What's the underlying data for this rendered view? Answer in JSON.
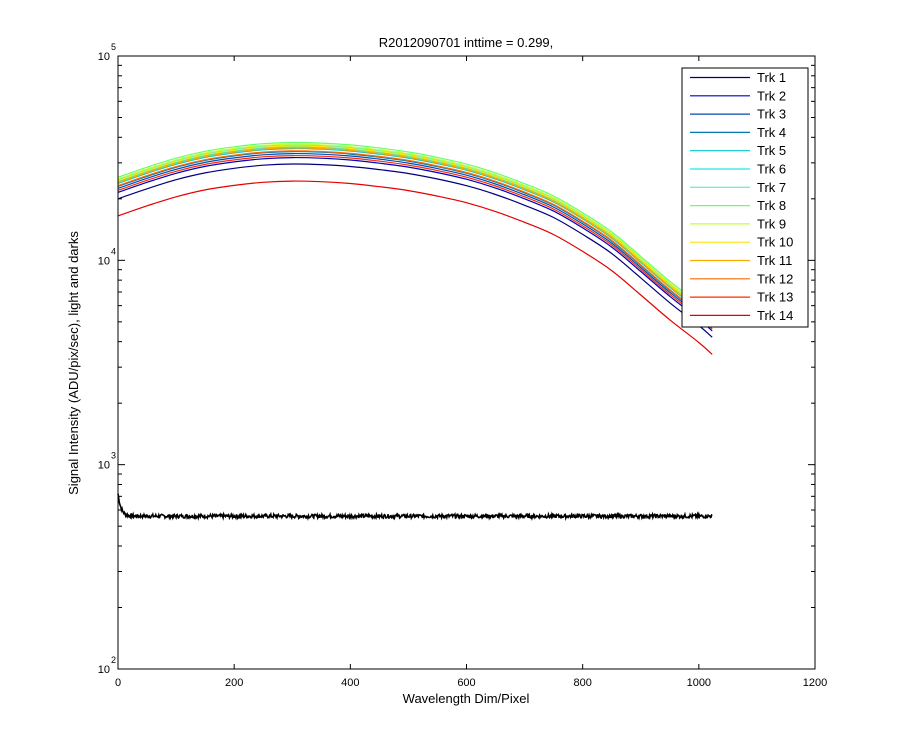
{
  "window": {
    "background": "#ffffff"
  },
  "chart_data": {
    "type": "line",
    "title": "R2012090701 inttime = 0.299,",
    "xlabel": "Wavelength Dim/Pixel",
    "ylabel": "Signal Intensity (ADU/pix/sec), light and darks",
    "x_scale": "linear",
    "y_scale": "log",
    "xlim": [
      0,
      1200
    ],
    "ylim": [
      100,
      100000
    ],
    "x_ticks": [
      0,
      200,
      400,
      600,
      800,
      1000,
      1200
    ],
    "x_tick_labels": [
      "0",
      "200",
      "400",
      "600",
      "800",
      "1000",
      "1200"
    ],
    "y_ticks": [
      {
        "value": 100,
        "base": "10",
        "exponent": "2"
      },
      {
        "value": 1000,
        "base": "10",
        "exponent": "3"
      },
      {
        "value": 10000,
        "base": "10",
        "exponent": "4"
      },
      {
        "value": 100000,
        "base": "10",
        "exponent": "5"
      }
    ],
    "grid": false,
    "legend_position": "top-right",
    "x": [
      0,
      50,
      100,
      150,
      200,
      250,
      300,
      350,
      400,
      450,
      500,
      550,
      600,
      650,
      700,
      750,
      800,
      850,
      900,
      950,
      1000,
      1023
    ],
    "light_shape": [
      1.0,
      1.12,
      1.24,
      1.34,
      1.41,
      1.46,
      1.48,
      1.47,
      1.44,
      1.39,
      1.33,
      1.25,
      1.16,
      1.05,
      0.93,
      0.81,
      0.67,
      0.54,
      0.41,
      0.31,
      0.24,
      0.21
    ],
    "series": [
      {
        "name": "Trk 1",
        "color": "#00007f",
        "scale": 20000
      },
      {
        "name": "Trk 2",
        "color": "#0000c8",
        "scale": 21500
      },
      {
        "name": "Trk 3",
        "color": "#004cb2",
        "scale": 22500
      },
      {
        "name": "Trk 4",
        "color": "#0077b2",
        "scale": 23000
      },
      {
        "name": "Trk 5",
        "color": "#00c8c8",
        "scale": 23800
      },
      {
        "name": "Trk 6",
        "color": "#1ee6e6",
        "scale": 24300
      },
      {
        "name": "Trk 7",
        "color": "#4ff0d6",
        "scale": 24800
      },
      {
        "name": "Trk 8",
        "color": "#66ff66",
        "scale": 25500
      },
      {
        "name": "Trk 9",
        "color": "#c8ff33",
        "scale": 25000
      },
      {
        "name": "Trk 10",
        "color": "#ffe600",
        "scale": 24500
      },
      {
        "name": "Trk 11",
        "color": "#ffaa00",
        "scale": 24000
      },
      {
        "name": "Trk 12",
        "color": "#ff6a00",
        "scale": 23200
      },
      {
        "name": "Trk 13",
        "color": "#ff2a00",
        "scale": 22000
      },
      {
        "name": "Trk 14",
        "color": "#e60000",
        "scale": 16500
      }
    ],
    "dark": {
      "color": "#000000",
      "x_range": [
        0,
        1023
      ],
      "level": 560,
      "start_level": 720,
      "noise": 12
    }
  }
}
